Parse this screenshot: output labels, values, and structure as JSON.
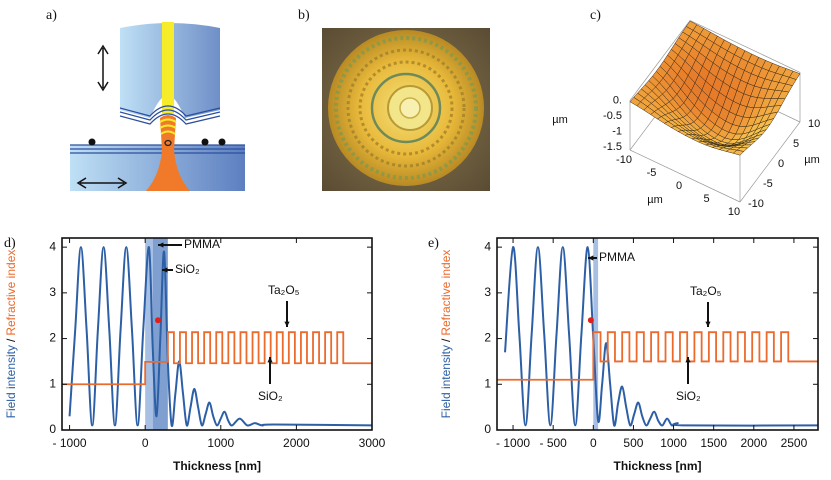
{
  "panel_labels": [
    "a)",
    "b)",
    "c)",
    "d)",
    "e)"
  ],
  "panel_c": {
    "z_ticks": [
      "0.",
      "-0.5",
      "-1",
      "-1.5"
    ],
    "x_ticks": [
      "-10",
      "-5",
      "0",
      "5",
      "10"
    ],
    "y_ticks": [
      "-10",
      "-5",
      "0",
      "5",
      "10"
    ],
    "unit": "µm"
  },
  "chart_data": [
    {
      "type": "line",
      "xlabel": "Thickness [nm]",
      "ylabel_separator": "/",
      "xlim": [
        -1100,
        3000
      ],
      "ylim": [
        0,
        4.2
      ],
      "xticks": [
        {
          "value": -1000,
          "label": "- 1000"
        },
        0,
        1000,
        2000,
        3000
      ],
      "yticks": [
        0,
        1,
        2,
        3,
        4
      ],
      "series": [
        {
          "name": "Field intensity",
          "color": "#2d5fa6",
          "x": [
            -1000,
            -925,
            -850,
            -775,
            -700,
            -625,
            -550,
            -475,
            -400,
            -325,
            -250,
            -175,
            -100,
            -25,
            50,
            100,
            150,
            200,
            250,
            300,
            350,
            400,
            450,
            500,
            550,
            600,
            650,
            700,
            750,
            800,
            850,
            900,
            950,
            1000,
            1050,
            1100,
            1150,
            1250,
            1350,
            1450,
            1550,
            1700,
            3000
          ],
          "values": [
            0.3,
            2.2,
            4,
            2.2,
            0.1,
            2.2,
            4,
            2.2,
            0.1,
            2.2,
            4,
            2.2,
            0.1,
            2.2,
            4,
            1.8,
            0.3,
            2.0,
            3.9,
            1.5,
            0.1,
            0.8,
            1.5,
            0.8,
            0.1,
            0.5,
            0.9,
            0.5,
            0.1,
            0.35,
            0.6,
            0.3,
            0.1,
            0.25,
            0.4,
            0.2,
            0.1,
            0.25,
            0.1,
            0.15,
            0.1,
            0.12,
            0.1
          ]
        },
        {
          "name": "Refractive index",
          "color": "#ec6a2c",
          "x": [
            -1100,
            0,
            0,
            300,
            300,
            380,
            380,
            460,
            460,
            540,
            540,
            620,
            620,
            700,
            700,
            780,
            780,
            860,
            860,
            940,
            940,
            1020,
            1020,
            1100,
            1100,
            1180,
            1180,
            1260,
            1260,
            1340,
            1340,
            1420,
            1420,
            1500,
            1500,
            1580,
            1580,
            1660,
            1660,
            1740,
            1740,
            1820,
            1820,
            1900,
            1900,
            1980,
            1980,
            2060,
            2060,
            2140,
            2140,
            2220,
            2220,
            2300,
            2300,
            2380,
            2380,
            2460,
            2460,
            2540,
            2540,
            2620,
            2620,
            3000
          ],
          "values": [
            1,
            1,
            1.49,
            1.49,
            2.14,
            2.14,
            1.46,
            1.46,
            2.14,
            2.14,
            1.46,
            1.46,
            2.14,
            2.14,
            1.46,
            1.46,
            2.14,
            2.14,
            1.46,
            1.46,
            2.14,
            2.14,
            1.46,
            1.46,
            2.14,
            2.14,
            1.46,
            1.46,
            2.14,
            2.14,
            1.46,
            1.46,
            2.14,
            2.14,
            1.46,
            1.46,
            2.14,
            2.14,
            1.46,
            1.46,
            2.14,
            2.14,
            1.46,
            1.46,
            2.14,
            2.14,
            1.46,
            1.46,
            2.14,
            2.14,
            1.46,
            1.46,
            2.14,
            2.14,
            1.46,
            1.46,
            2.14,
            2.14,
            1.46,
            1.46,
            2.14,
            2.14,
            1.46,
            1.46
          ]
        }
      ],
      "bands": [
        {
          "from": 0,
          "to": 100,
          "color": "#a7bfe2"
        },
        {
          "from": 100,
          "to": 300,
          "color": "#7e9fd0"
        }
      ],
      "markers": [
        {
          "x": 170,
          "y": 2.4,
          "color": "#e0201b"
        }
      ],
      "annotations": [
        "PMMA",
        "SiO₂",
        "Ta₂O₅",
        "SiO₂"
      ]
    },
    {
      "type": "line",
      "xlabel": "Thickness [nm]",
      "ylabel_separator": "/",
      "xlim": [
        -1200,
        2800
      ],
      "ylim": [
        0,
        4.2
      ],
      "xticks": [
        {
          "value": -1000,
          "label": "- 1000"
        },
        {
          "value": -500,
          "label": "- 500"
        },
        0,
        500,
        1000,
        1500,
        2000,
        2500
      ],
      "yticks": [
        0,
        1,
        2,
        3,
        4
      ],
      "series": [
        {
          "name": "Field intensity",
          "color": "#2d5fa6",
          "x": [
            -1100,
            -1000,
            -922,
            -845,
            -768,
            -690,
            -612,
            -535,
            -458,
            -380,
            -302,
            -225,
            -148,
            -70,
            0,
            60,
            110,
            160,
            210,
            260,
            310,
            360,
            410,
            460,
            510,
            560,
            610,
            660,
            710,
            760,
            810,
            860,
            920,
            980,
            1050,
            1150,
            2800
          ],
          "values": [
            1.7,
            4,
            2.1,
            0.1,
            2.1,
            4,
            2.1,
            0.1,
            2.1,
            4,
            2.1,
            0.1,
            2.1,
            4,
            2.0,
            0.2,
            1.0,
            1.9,
            1.0,
            0.1,
            0.6,
            0.95,
            0.5,
            0.1,
            0.35,
            0.6,
            0.3,
            0.1,
            0.25,
            0.4,
            0.2,
            0.1,
            0.25,
            0.1,
            0.15,
            0.1,
            0.1
          ]
        },
        {
          "name": "Refractive index",
          "color": "#ec6a2c",
          "x": [
            -1200,
            0,
            0,
            90,
            90,
            180,
            180,
            270,
            270,
            360,
            360,
            450,
            450,
            540,
            540,
            630,
            630,
            720,
            720,
            810,
            810,
            900,
            900,
            990,
            990,
            1080,
            1080,
            1170,
            1170,
            1260,
            1260,
            1350,
            1350,
            1440,
            1440,
            1530,
            1530,
            1620,
            1620,
            1710,
            1710,
            1800,
            1800,
            1890,
            1890,
            1980,
            1980,
            2070,
            2070,
            2160,
            2160,
            2250,
            2250,
            2340,
            2340,
            2430,
            2430,
            2800
          ],
          "values": [
            1.1,
            1.1,
            2.14,
            2.14,
            1.5,
            1.5,
            2.14,
            2.14,
            1.5,
            1.5,
            2.14,
            2.14,
            1.5,
            1.5,
            2.14,
            2.14,
            1.5,
            1.5,
            2.14,
            2.14,
            1.5,
            1.5,
            2.14,
            2.14,
            1.5,
            1.5,
            2.14,
            2.14,
            1.5,
            1.5,
            2.14,
            2.14,
            1.5,
            1.5,
            2.14,
            2.14,
            1.5,
            1.5,
            2.14,
            2.14,
            1.5,
            1.5,
            2.14,
            2.14,
            1.5,
            1.5,
            2.14,
            2.14,
            1.5,
            1.5,
            2.14,
            2.14,
            1.5,
            1.5,
            2.14,
            2.14,
            1.5,
            1.5
          ]
        }
      ],
      "bands": [
        {
          "from": 0,
          "to": 60,
          "color": "#a7bfe2"
        }
      ],
      "markers": [
        {
          "x": -30,
          "y": 2.4,
          "color": "#e0201b"
        }
      ],
      "annotations": [
        "PMMA",
        "Ta₂O₅",
        "SiO₂"
      ]
    }
  ]
}
